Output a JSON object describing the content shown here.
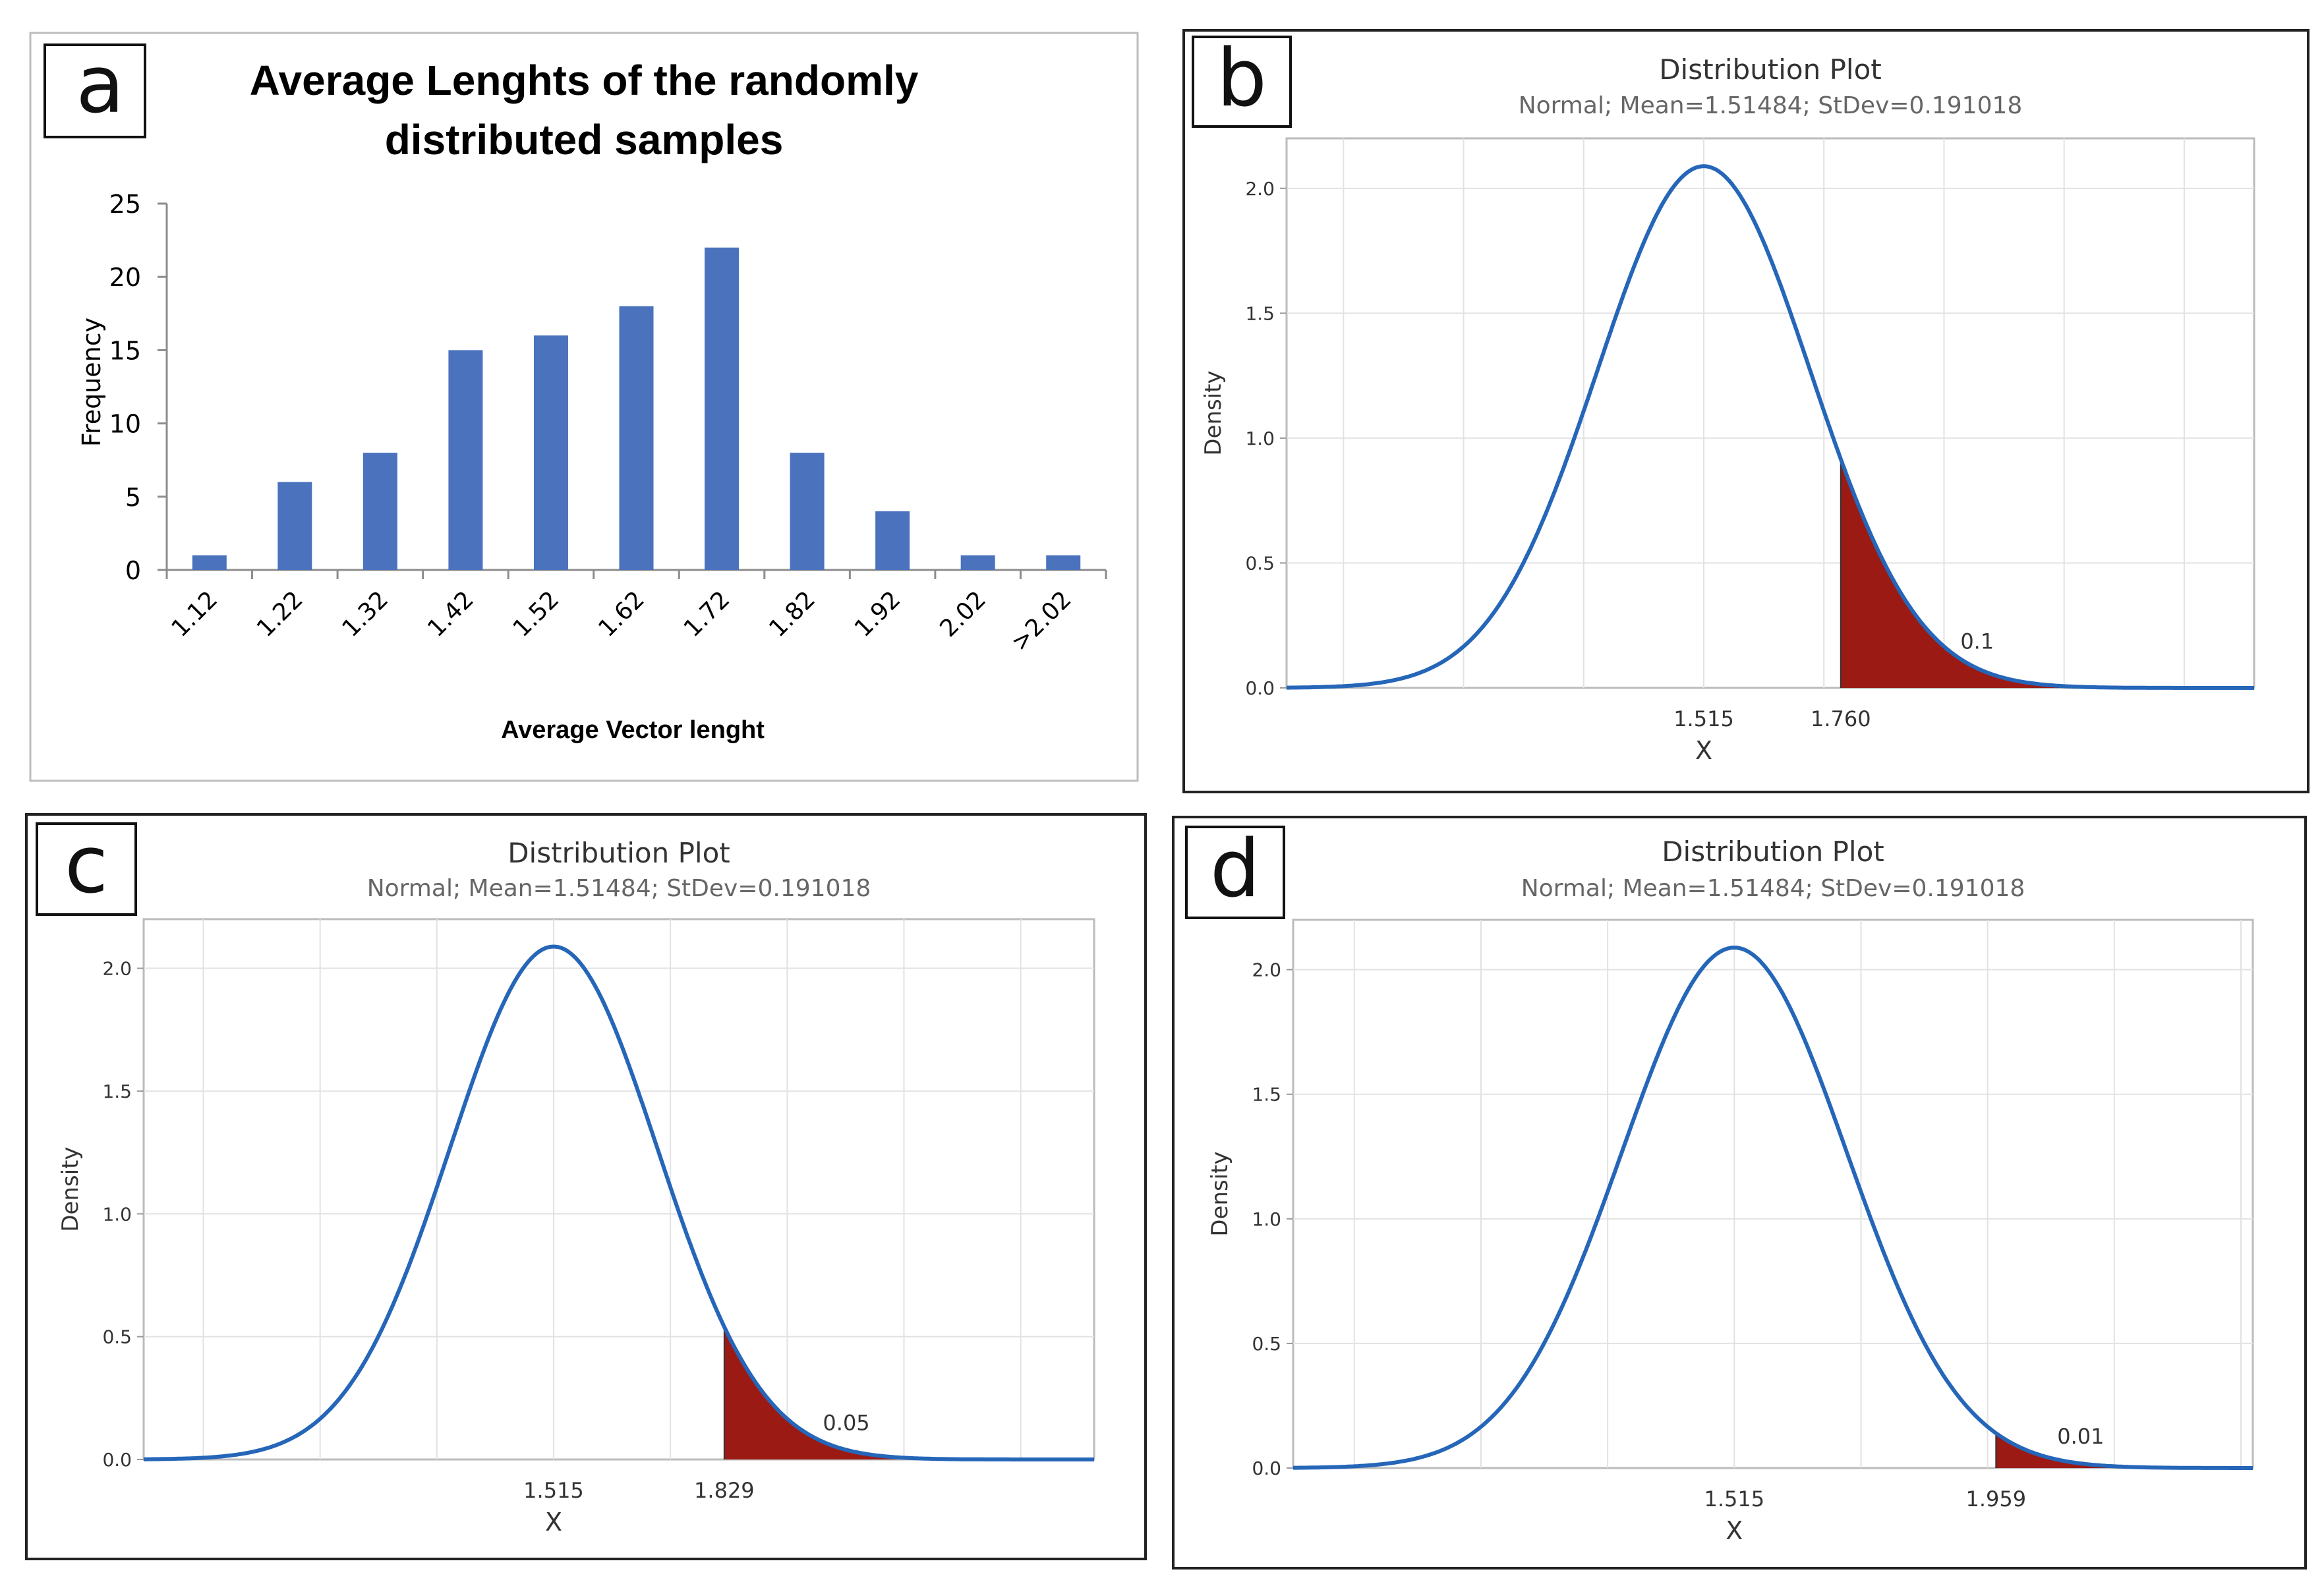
{
  "colors": {
    "bar": "#4a72bd",
    "curve": "#2566b8",
    "shade": "#9b1a14",
    "grid": "#e2e2e2",
    "axis": "#444444"
  },
  "chart_data": [
    {
      "panel": "a",
      "type": "bar",
      "title": "Average Lenghts of the randomly distributed samples",
      "title_lines": [
        "Average Lenghts of the randomly",
        "distributed samples"
      ],
      "xlabel": "Average Vector lenght",
      "ylabel": "Frequency",
      "categories": [
        "1.12",
        "1.22",
        "1.32",
        "1.42",
        "1.52",
        "1.62",
        "1.72",
        "1.82",
        "1.92",
        "2.02",
        ">2.02"
      ],
      "values": [
        1,
        6,
        8,
        15,
        16,
        18,
        22,
        8,
        4,
        1,
        1
      ],
      "ylim": [
        0,
        25
      ],
      "yticks": [
        "0",
        "5",
        "10",
        "15",
        "20",
        "25"
      ],
      "grid": false,
      "legend": "none"
    },
    {
      "panel": "b",
      "type": "area",
      "title": "Distribution Plot",
      "subtitle": "Normal; Mean=1.51484; StDev=0.191018",
      "mean": 1.51484,
      "stdev": 0.191018,
      "xlabel": "X",
      "ylabel": "Density",
      "xlim": [
        0.768,
        2.5
      ],
      "ylim": [
        0,
        2.2
      ],
      "yticks": [
        "0.0",
        "0.5",
        "1.0",
        "1.5",
        "2.0"
      ],
      "x_tick_labels": [
        "1.515",
        "1.760"
      ],
      "cutoff": 1.76,
      "tail_area_label": "0.1",
      "grid": true
    },
    {
      "panel": "c",
      "type": "area",
      "title": "Distribution Plot",
      "subtitle": "Normal; Mean=1.51484; StDev=0.191018",
      "mean": 1.51484,
      "stdev": 0.191018,
      "xlabel": "X",
      "ylabel": "Density",
      "xlim": [
        0.76,
        2.51
      ],
      "ylim": [
        0,
        2.2
      ],
      "yticks": [
        "0.0",
        "0.5",
        "1.0",
        "1.5",
        "2.0"
      ],
      "x_tick_labels": [
        "1.515",
        "1.829"
      ],
      "cutoff": 1.829,
      "tail_area_label": "0.05",
      "grid": true
    },
    {
      "panel": "d",
      "type": "area",
      "title": "Distribution Plot",
      "subtitle": "Normal; Mean=1.51484; StDev=0.191018",
      "mean": 1.51484,
      "stdev": 0.191018,
      "xlabel": "X",
      "ylabel": "Density",
      "xlim": [
        0.766,
        2.395
      ],
      "ylim": [
        0,
        2.2
      ],
      "yticks": [
        "0.0",
        "0.5",
        "1.0",
        "1.5",
        "2.0"
      ],
      "x_tick_labels": [
        "1.515",
        "1.959"
      ],
      "cutoff": 1.959,
      "tail_area_label": "0.01",
      "grid": true
    }
  ]
}
